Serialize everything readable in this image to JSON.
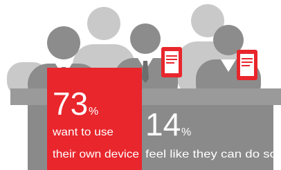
{
  "stats": [
    {
      "value": 73,
      "unit": "%",
      "label_lines": [
        "want to use",
        "their own device"
      ]
    },
    {
      "value": 14,
      "unit": "%",
      "label_lines": [
        "feel like they can do so"
      ]
    }
  ]
}
